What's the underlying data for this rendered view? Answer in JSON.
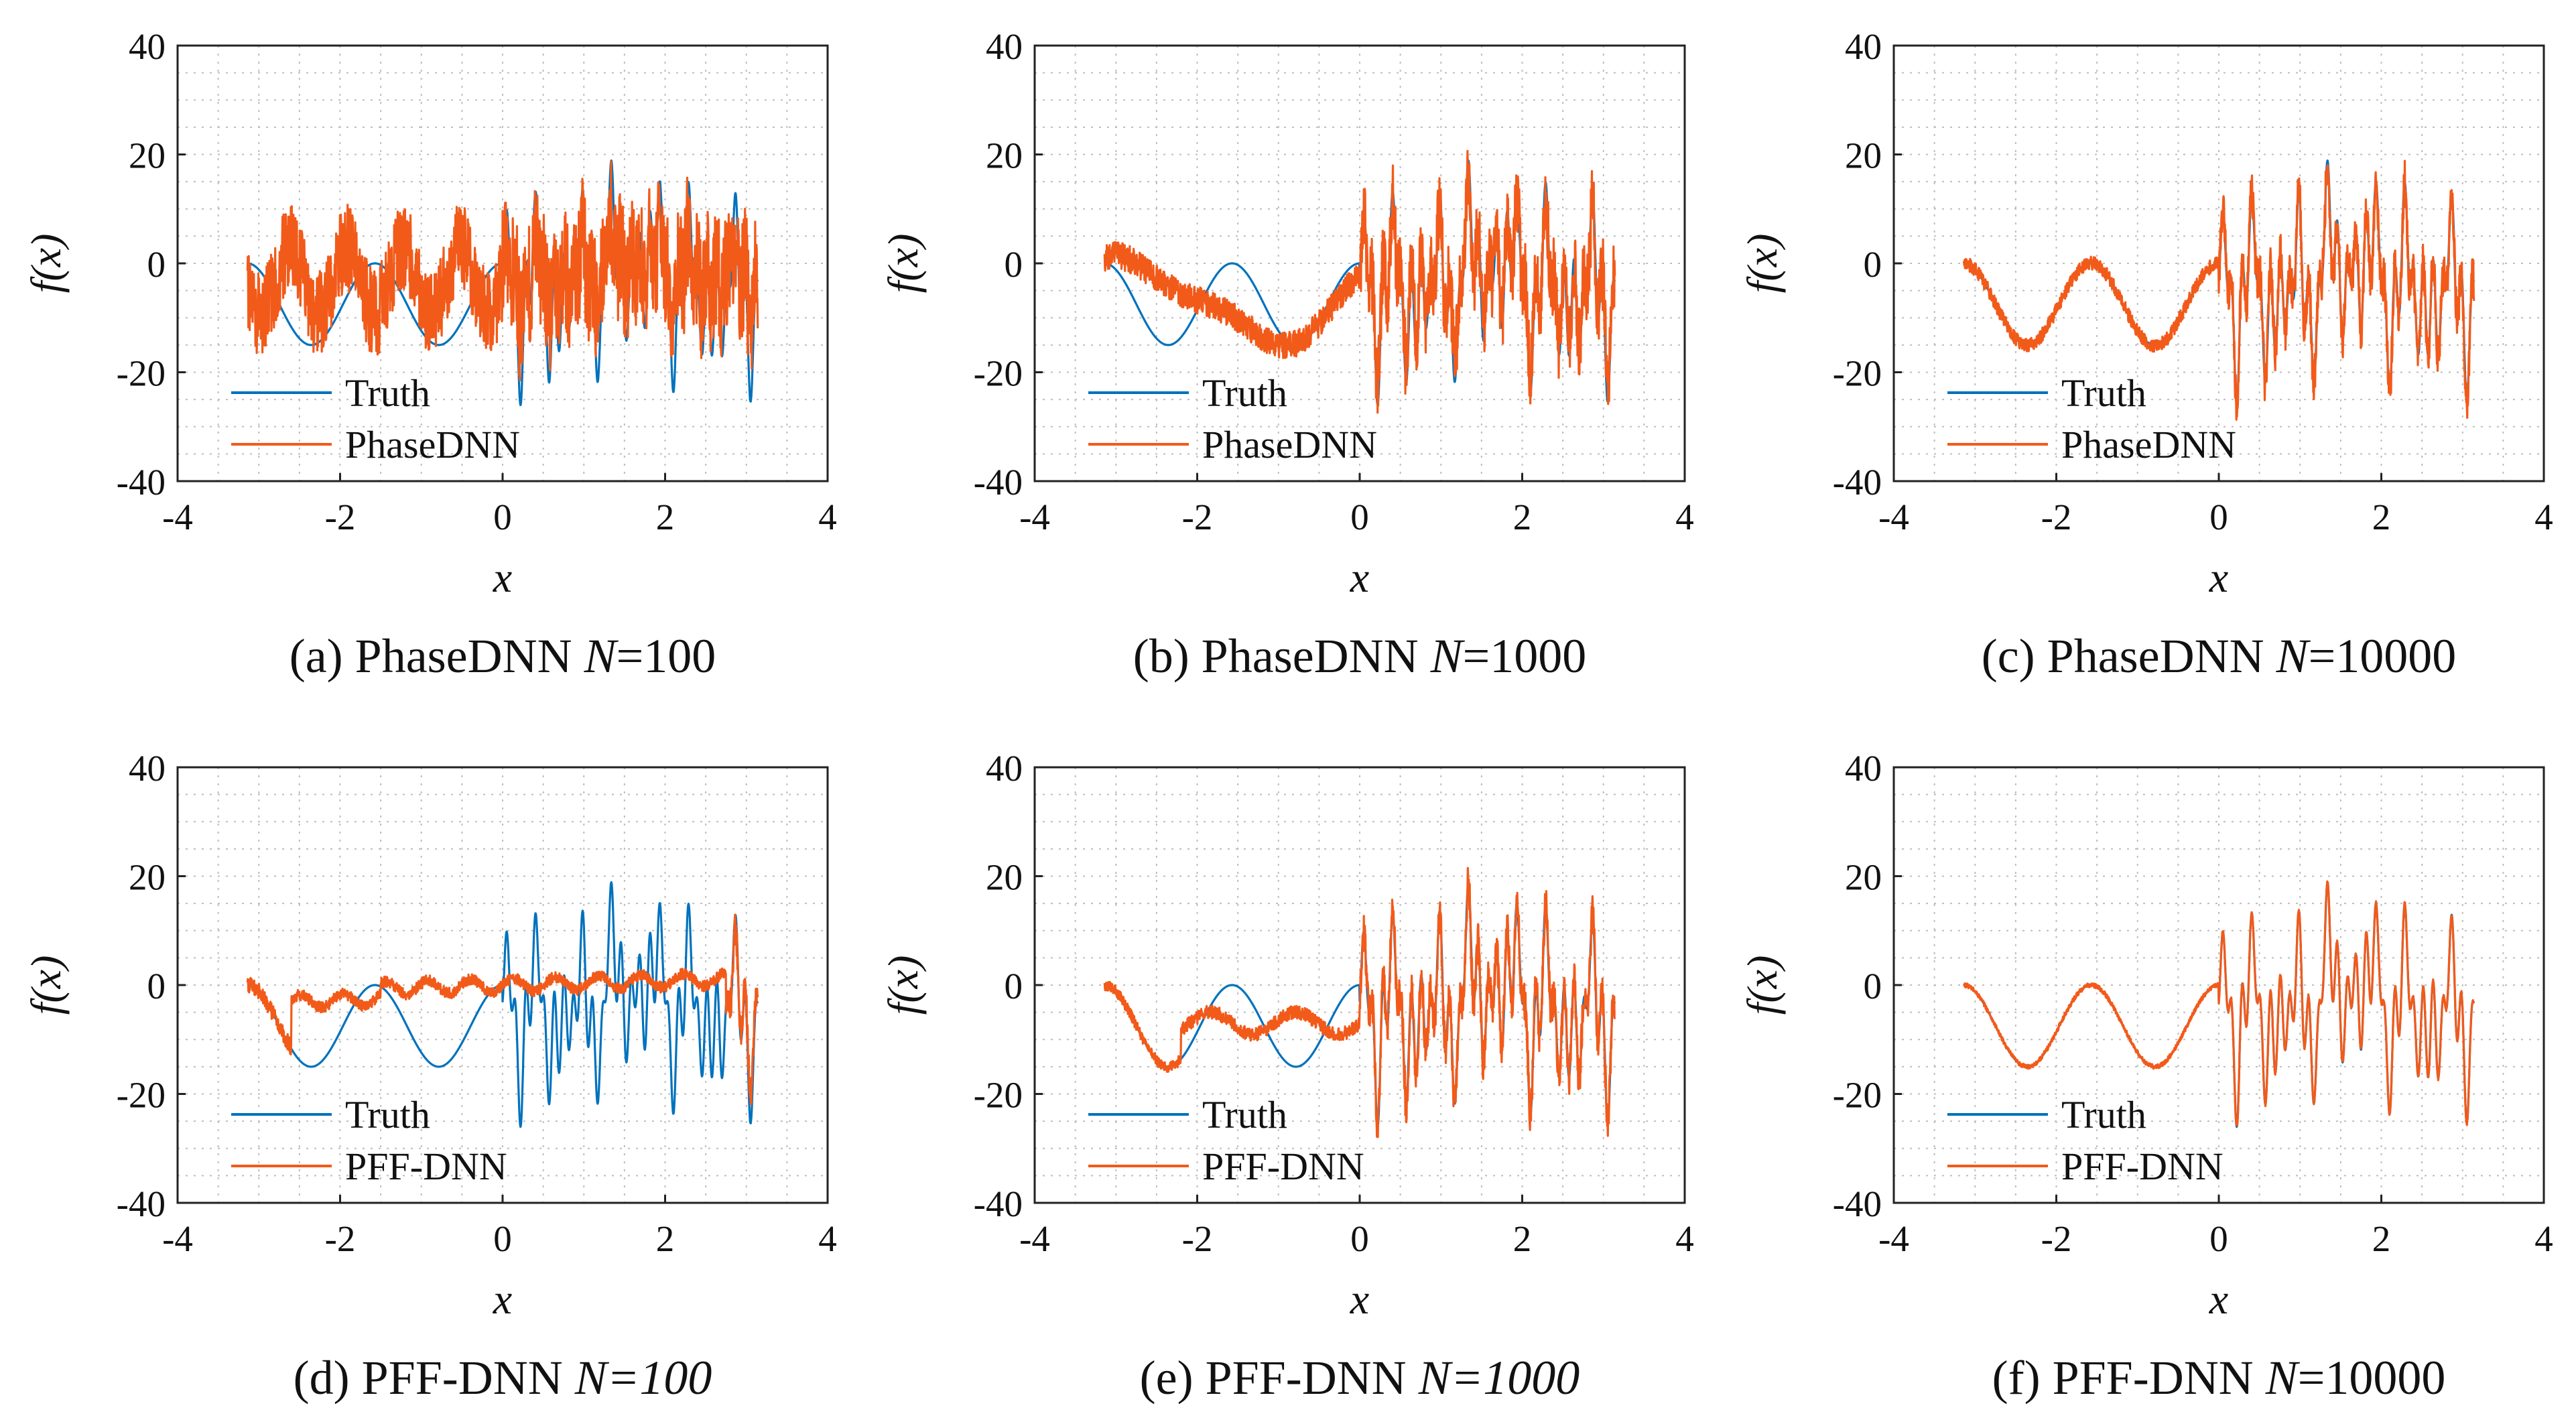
{
  "colors": {
    "truth": "#0072BD",
    "model": "#F25A1A",
    "axis": "#222222",
    "grid": "#BDBDBD"
  },
  "chart_data": [
    {
      "id": "a",
      "type": "line",
      "model": "phase",
      "quality": 0,
      "caption": {
        "prefix": "(a) PhaseDNN",
        "n_label": "N",
        "n_value": "=100",
        "n_italic_value": false
      },
      "xlabel": "x",
      "ylabel": "f(x)",
      "xlim": [
        -4,
        4
      ],
      "ylim": [
        -40,
        40
      ],
      "xticks": [
        "-4",
        "-2",
        "0",
        "2",
        "4"
      ],
      "yticks": [
        "40",
        "20",
        "0",
        "-20",
        "-40"
      ],
      "legend": [
        "Truth",
        "PhaseDNN"
      ],
      "legend_position": "bottom-left",
      "grid": true
    },
    {
      "id": "b",
      "type": "line",
      "model": "phase",
      "quality": 1,
      "caption": {
        "prefix": "(b) PhaseDNN",
        "n_label": "N",
        "n_value": "=1000",
        "n_italic_value": false
      },
      "xlabel": "x",
      "ylabel": "f(x)",
      "xlim": [
        -4,
        4
      ],
      "ylim": [
        -40,
        40
      ],
      "xticks": [
        "-4",
        "-2",
        "0",
        "2",
        "4"
      ],
      "yticks": [
        "40",
        "20",
        "0",
        "-20",
        "-40"
      ],
      "legend": [
        "Truth",
        "PhaseDNN"
      ],
      "legend_position": "bottom-left",
      "grid": true
    },
    {
      "id": "c",
      "type": "line",
      "model": "phase",
      "quality": 2,
      "caption": {
        "prefix": "(c) PhaseDNN",
        "n_label": "N",
        "n_value": "=10000",
        "n_italic_value": false
      },
      "xlabel": "x",
      "ylabel": "f(x)",
      "xlim": [
        -4,
        4
      ],
      "ylim": [
        -40,
        40
      ],
      "xticks": [
        "-4",
        "-2",
        "0",
        "2",
        "4"
      ],
      "yticks": [
        "40",
        "20",
        "0",
        "-20",
        "-40"
      ],
      "legend": [
        "Truth",
        "PhaseDNN"
      ],
      "legend_position": "bottom-left",
      "grid": true
    },
    {
      "id": "d",
      "type": "line",
      "model": "pff",
      "quality": 0,
      "caption": {
        "prefix": "(d) PFF-DNN",
        "n_label": "N",
        "n_value": "=100",
        "n_italic_value": true
      },
      "xlabel": "x",
      "ylabel": "f(x)",
      "xlim": [
        -4,
        4
      ],
      "ylim": [
        -40,
        40
      ],
      "xticks": [
        "-4",
        "-2",
        "0",
        "2",
        "4"
      ],
      "yticks": [
        "40",
        "20",
        "0",
        "-20",
        "-40"
      ],
      "legend": [
        "Truth",
        "PFF-DNN"
      ],
      "legend_position": "bottom-left",
      "grid": true
    },
    {
      "id": "e",
      "type": "line",
      "model": "pff",
      "quality": 1,
      "caption": {
        "prefix": "(e) PFF-DNN",
        "n_label": "N",
        "n_value": "=1000",
        "n_italic_value": true
      },
      "xlabel": "x",
      "ylabel": "f(x)",
      "xlim": [
        -4,
        4
      ],
      "ylim": [
        -40,
        40
      ],
      "xticks": [
        "-4",
        "-2",
        "0",
        "2",
        "4"
      ],
      "yticks": [
        "40",
        "20",
        "0",
        "-20",
        "-40"
      ],
      "legend": [
        "Truth",
        "PFF-DNN"
      ],
      "legend_position": "bottom-left",
      "grid": true
    },
    {
      "id": "f",
      "type": "line",
      "model": "pff",
      "quality": 2,
      "caption": {
        "prefix": "(f) PFF-DNN",
        "n_label": "N",
        "n_value": "=10000",
        "n_italic_value": false
      },
      "xlabel": "x",
      "ylabel": "f(x)",
      "xlim": [
        -4,
        4
      ],
      "ylim": [
        -40,
        40
      ],
      "xticks": [
        "-4",
        "-2",
        "0",
        "2",
        "4"
      ],
      "yticks": [
        "40",
        "20",
        "0",
        "-20",
        "-40"
      ],
      "legend": [
        "Truth",
        "PFF-DNN"
      ],
      "legend_position": "bottom-left",
      "grid": true
    }
  ]
}
